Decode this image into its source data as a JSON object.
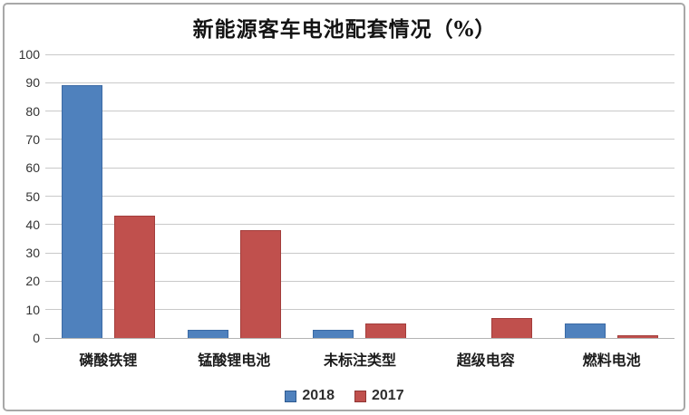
{
  "title": "新能源客车电池配套情况（%）",
  "colors": {
    "series_2018_fill": "#4F81BD",
    "series_2018_border": "#3b6aa5",
    "series_2017_fill": "#C0504D",
    "series_2017_border": "#a33d3b",
    "gridline": "#c9c9c9",
    "baseline": "#b3b3b3",
    "frame_border": "#a8a8a8",
    "title_text": "#141414",
    "tick_text": "#333333"
  },
  "y_axis": {
    "ticks": [
      100,
      90,
      80,
      70,
      60,
      50,
      40,
      30,
      20,
      10,
      0
    ]
  },
  "legend": {
    "items": [
      {
        "label": "2018",
        "color": "#4F81BD",
        "border": "#2f5a8f"
      },
      {
        "label": "2017",
        "color": "#C0504D",
        "border": "#8f3634"
      }
    ]
  },
  "chart_data": {
    "type": "bar",
    "title": "新能源客车电池配套情况（%）",
    "categories": [
      "磷酸铁锂",
      "锰酸锂电池",
      "未标注类型",
      "超级电容",
      "燃料电池"
    ],
    "series": [
      {
        "name": "2018",
        "color": "#4F81BD",
        "values": [
          89,
          3,
          3,
          0,
          5
        ]
      },
      {
        "name": "2017",
        "color": "#C0504D",
        "values": [
          43,
          38,
          5,
          7,
          1
        ]
      }
    ],
    "xlabel": "",
    "ylabel": "",
    "ylim": [
      0,
      100
    ],
    "y_tick_step": 10,
    "grid": true,
    "legend_position": "bottom"
  }
}
